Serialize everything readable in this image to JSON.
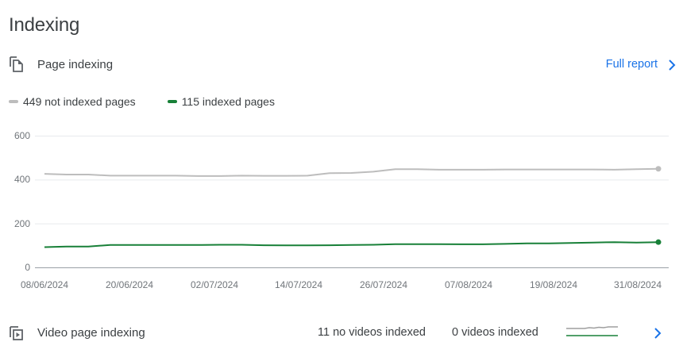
{
  "page": {
    "title": "Indexing"
  },
  "page_indexing": {
    "label": "Page indexing",
    "icon": "copy-pages-icon",
    "full_report_label": "Full report",
    "legend": [
      {
        "label": "449 not indexed pages",
        "color": "#bdbdbd"
      },
      {
        "label": "115 indexed pages",
        "color": "#188038"
      }
    ]
  },
  "video_indexing": {
    "label": "Video page indexing",
    "icon": "video-pages-icon",
    "no_videos_indexed": "11 no videos indexed",
    "videos_indexed": "0 videos indexed"
  },
  "chart_data": {
    "type": "line",
    "title": "Page indexing",
    "xlabel": "",
    "ylabel": "",
    "ylim": [
      0,
      600
    ],
    "yticks": [
      "0",
      "200",
      "400",
      "600"
    ],
    "xticks": [
      "08/06/2024",
      "20/06/2024",
      "02/07/2024",
      "14/07/2024",
      "26/07/2024",
      "07/08/2024",
      "19/08/2024",
      "31/08/2024"
    ],
    "grid": true,
    "legend_position": "top-left",
    "x": [
      0,
      3,
      6,
      9,
      12,
      15,
      18,
      21,
      24,
      27,
      30,
      33,
      36,
      39,
      42,
      45,
      48,
      51,
      54,
      57,
      60,
      63,
      66,
      69,
      72,
      75,
      78,
      81,
      84
    ],
    "x_start_date": "08/06/2024",
    "x_unit": "days",
    "series": [
      {
        "name": "not indexed pages",
        "color": "#bdbdbd",
        "values": [
          426,
          423,
          423,
          418,
          418,
          418,
          418,
          416,
          416,
          418,
          417,
          417,
          418,
          429,
          430,
          436,
          447,
          447,
          445,
          445,
          445,
          446,
          446,
          446,
          446,
          446,
          445,
          447,
          449
        ],
        "last_value": 449
      },
      {
        "name": "indexed pages",
        "color": "#188038",
        "values": [
          92,
          95,
          95,
          102,
          102,
          102,
          102,
          102,
          103,
          103,
          101,
          100,
          100,
          101,
          102,
          103,
          106,
          106,
          106,
          105,
          105,
          107,
          109,
          109,
          111,
          113,
          115,
          113,
          115
        ],
        "last_value": 115
      }
    ]
  }
}
